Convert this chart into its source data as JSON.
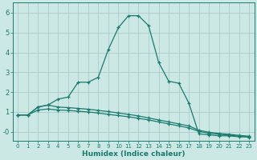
{
  "xlabel": "Humidex (Indice chaleur)",
  "bg_color": "#cce8e4",
  "grid_color": "#aacccc",
  "line_color": "#1a7a6e",
  "xlim": [
    -0.5,
    23.5
  ],
  "ylim": [
    -0.45,
    6.5
  ],
  "xticks": [
    0,
    1,
    2,
    3,
    4,
    5,
    6,
    7,
    8,
    9,
    10,
    11,
    12,
    13,
    14,
    15,
    16,
    17,
    18,
    19,
    20,
    21,
    22,
    23
  ],
  "yticks_vals": [
    6,
    5,
    4,
    3,
    2,
    1,
    0
  ],
  "yticks_labels": [
    "6",
    "5",
    "4",
    "3",
    "2",
    "1",
    "-0"
  ],
  "series1_x": [
    0,
    1,
    2,
    3,
    4,
    5,
    6,
    7,
    8,
    9,
    10,
    11,
    12,
    13,
    14,
    15,
    16,
    17,
    18,
    19,
    20,
    21,
    22,
    23
  ],
  "series1_y": [
    0.85,
    0.85,
    1.25,
    1.35,
    1.65,
    1.75,
    2.5,
    2.5,
    2.75,
    4.15,
    5.25,
    5.85,
    5.85,
    5.35,
    3.5,
    2.55,
    2.45,
    1.45,
    -0.1,
    -0.15,
    -0.2,
    -0.2,
    -0.25,
    -0.25
  ],
  "series2_x": [
    0,
    1,
    2,
    3,
    4,
    5,
    6,
    7,
    8,
    9,
    10,
    11,
    12,
    13,
    14,
    15,
    16,
    17,
    18,
    19,
    20,
    21,
    22,
    23
  ],
  "series2_y": [
    0.85,
    0.85,
    1.25,
    1.35,
    1.25,
    1.22,
    1.18,
    1.14,
    1.08,
    1.02,
    0.95,
    0.88,
    0.8,
    0.7,
    0.6,
    0.5,
    0.4,
    0.3,
    0.08,
    -0.02,
    -0.08,
    -0.12,
    -0.18,
    -0.22
  ],
  "series3_x": [
    0,
    1,
    2,
    3,
    4,
    5,
    6,
    7,
    8,
    9,
    10,
    11,
    12,
    13,
    14,
    15,
    16,
    17,
    18,
    19,
    20,
    21,
    22,
    23
  ],
  "series3_y": [
    0.85,
    0.85,
    1.1,
    1.15,
    1.1,
    1.08,
    1.04,
    1.0,
    0.95,
    0.88,
    0.82,
    0.76,
    0.68,
    0.6,
    0.5,
    0.4,
    0.3,
    0.2,
    0.02,
    -0.07,
    -0.12,
    -0.17,
    -0.22,
    -0.27
  ]
}
